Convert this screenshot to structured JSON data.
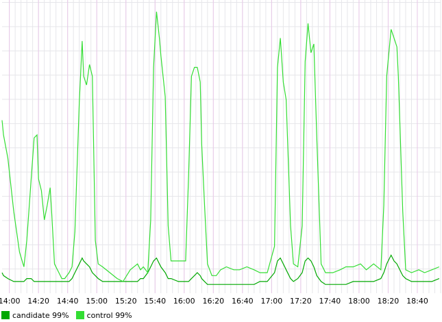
{
  "chart_data": {
    "type": "line",
    "x": [
      835,
      836,
      839,
      843,
      847,
      850,
      852,
      855,
      857,
      859,
      860,
      862,
      864,
      866,
      868,
      869,
      871,
      874,
      876,
      878,
      881,
      883,
      885,
      888,
      890,
      891,
      893,
      895,
      897,
      899,
      901,
      904,
      909,
      914,
      918,
      923,
      928,
      930,
      932,
      935,
      937,
      939,
      941,
      943,
      944,
      947,
      949,
      951,
      956,
      961,
      963,
      965,
      967,
      969,
      971,
      972,
      974,
      976,
      979,
      982,
      985,
      989,
      994,
      998,
      1003,
      1008,
      1012,
      1017,
      1022,
      1024,
      1026,
      1028,
      1030,
      1033,
      1035,
      1038,
      1041,
      1043,
      1045,
      1047,
      1049,
      1051,
      1054,
      1057,
      1062,
      1067,
      1071,
      1076,
      1081,
      1085,
      1090,
      1095,
      1097,
      1099,
      1102,
      1104,
      1106,
      1107,
      1110,
      1112,
      1116,
      1121,
      1125,
      1130,
      1135
    ],
    "series": [
      {
        "name": "candidate 99%",
        "color": "#00a800",
        "values": [
          7,
          6,
          5,
          4,
          4,
          4,
          5,
          5,
          4,
          4,
          4,
          4,
          4,
          4,
          4,
          4,
          4,
          4,
          4,
          4,
          4,
          5,
          7,
          10,
          12,
          11,
          10,
          9,
          7,
          6,
          5,
          4,
          4,
          4,
          4,
          4,
          4,
          5,
          5,
          7,
          9,
          11,
          12,
          10,
          9,
          7,
          5,
          5,
          4,
          4,
          4,
          5,
          6,
          7,
          6,
          5,
          4,
          3,
          3,
          3,
          3,
          3,
          3,
          3,
          3,
          3,
          4,
          4,
          7,
          11,
          12,
          10,
          8,
          5,
          4,
          5,
          7,
          11,
          12,
          11,
          9,
          6,
          4,
          3,
          3,
          3,
          3,
          4,
          4,
          4,
          4,
          5,
          7,
          10,
          13,
          11,
          10,
          9,
          6,
          5,
          4,
          4,
          4,
          4,
          5
        ]
      },
      {
        "name": "control 99%",
        "color": "#33dd33",
        "values": [
          59,
          54,
          46,
          28,
          14,
          9,
          18,
          39,
          53,
          54,
          39,
          35,
          25,
          30,
          36,
          28,
          10,
          7,
          5,
          5,
          7,
          9,
          21,
          65,
          86,
          74,
          71,
          78,
          74,
          18,
          10,
          9,
          7,
          5,
          4,
          8,
          10,
          8,
          9,
          7,
          25,
          77,
          96,
          87,
          81,
          67,
          23,
          11,
          11,
          11,
          40,
          74,
          77,
          77,
          72,
          51,
          30,
          10,
          6,
          6,
          8,
          9,
          8,
          8,
          9,
          8,
          7,
          7,
          16,
          77,
          87,
          72,
          66,
          23,
          10,
          9,
          23,
          79,
          92,
          82,
          85,
          53,
          10,
          7,
          7,
          8,
          9,
          9,
          10,
          8,
          10,
          8,
          30,
          74,
          90,
          87,
          84,
          74,
          28,
          8,
          7,
          8,
          7,
          8,
          9
        ]
      }
    ],
    "xlim": [
      835,
      1136
    ],
    "ylim": [
      0,
      100
    ],
    "xticks": [
      {
        "value": 840,
        "label": "14:00"
      },
      {
        "value": 860,
        "label": "14:20"
      },
      {
        "value": 880,
        "label": "14:40"
      },
      {
        "value": 900,
        "label": "15:00"
      },
      {
        "value": 920,
        "label": "15:20"
      },
      {
        "value": 940,
        "label": "15:40"
      },
      {
        "value": 960,
        "label": "16:00"
      },
      {
        "value": 980,
        "label": "16:20"
      },
      {
        "value": 1000,
        "label": "16:40"
      },
      {
        "value": 1020,
        "label": "17:00"
      },
      {
        "value": 1040,
        "label": "17:20"
      },
      {
        "value": 1060,
        "label": "17:40"
      },
      {
        "value": 1080,
        "label": "18:00"
      },
      {
        "value": 1100,
        "label": "18:20"
      },
      {
        "value": 1120,
        "label": "18:40"
      }
    ],
    "grid": true,
    "legend": "bottom-left"
  }
}
